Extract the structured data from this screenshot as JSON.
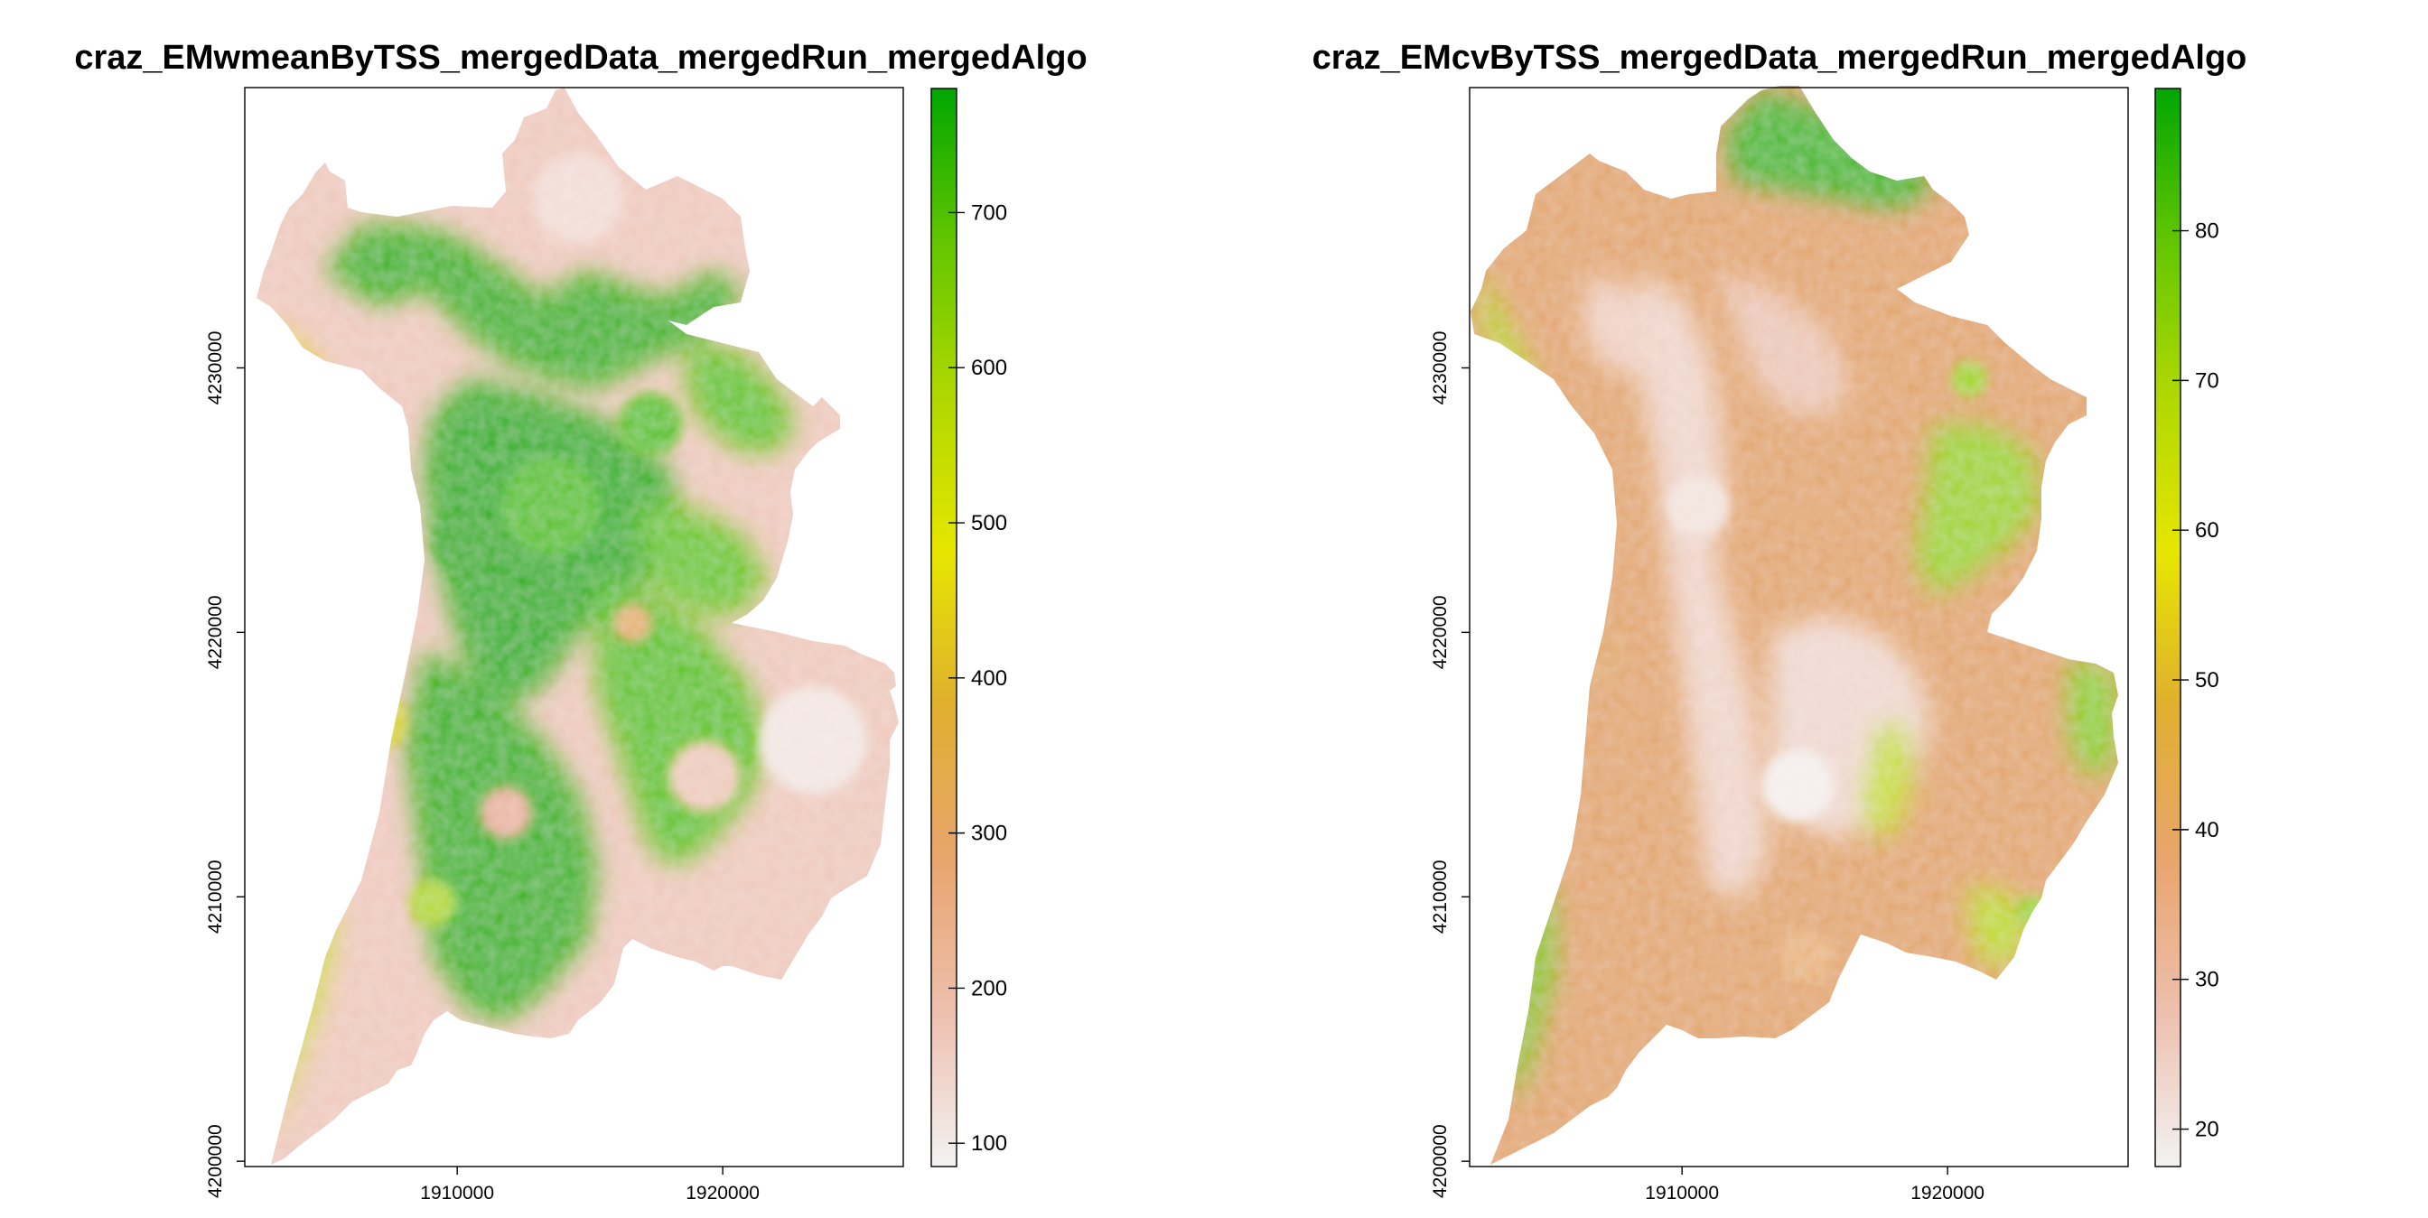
{
  "chart_data": [
    {
      "type": "heatmap",
      "title": "craz_EMwmeanByTSS_mergedData_mergedRun_mergedAlgo",
      "xlabel": "",
      "ylabel": "",
      "x_ticks": [
        1910000,
        1920000
      ],
      "y_ticks": [
        4200000,
        4210000,
        4220000,
        4230000
      ],
      "xlim": [
        1902000,
        1926800
      ],
      "ylim": [
        4199800,
        4240600
      ],
      "colorbar": {
        "range": [
          85,
          780
        ],
        "ticks": [
          100,
          200,
          300,
          400,
          500,
          600,
          700
        ],
        "colors": [
          "#f2f2f2",
          "#eebfae",
          "#e8a56d",
          "#e0b02e",
          "#e6e600",
          "#b0d800",
          "#63c600",
          "#00a600"
        ],
        "legend_position": "right"
      },
      "grid": false
    },
    {
      "type": "heatmap",
      "title": "craz_EMcvByTSS_mergedData_mergedRun_mergedAlgo",
      "xlabel": "",
      "ylabel": "",
      "x_ticks": [
        1910000,
        1920000
      ],
      "y_ticks": [
        4200000,
        4210000,
        4220000,
        4230000
      ],
      "xlim": [
        1902000,
        1926800
      ],
      "ylim": [
        4199800,
        4240600
      ],
      "colorbar": {
        "range": [
          17.5,
          89.5
        ],
        "ticks": [
          20,
          30,
          40,
          50,
          60,
          70,
          80
        ],
        "colors": [
          "#f2f2f2",
          "#eebfae",
          "#e8a56d",
          "#e0b02e",
          "#e6e600",
          "#b0d800",
          "#63c600",
          "#00a600"
        ],
        "legend_position": "right"
      },
      "grid": false
    }
  ]
}
